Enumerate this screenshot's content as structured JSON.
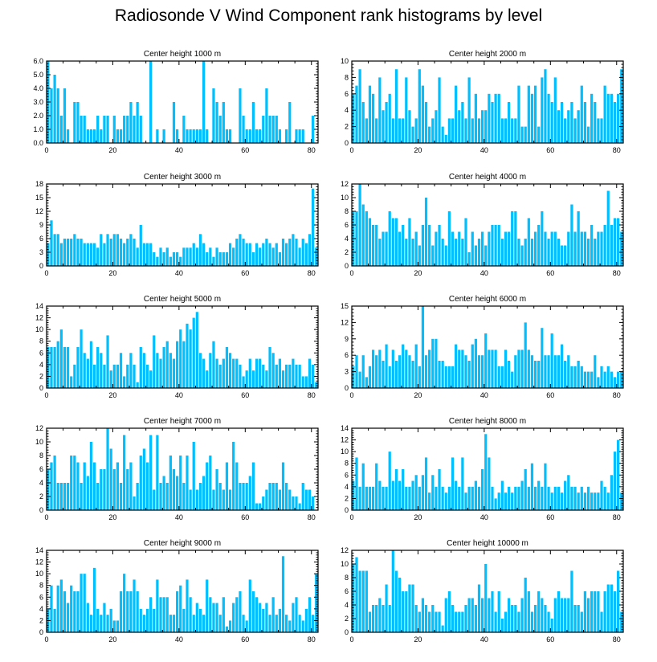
{
  "title": "Radiosonde V Wind Component rank histograms by level",
  "colors": {
    "bar": "#00bfff",
    "axis": "#000000",
    "background": "#ffffff"
  },
  "chart_data": [
    {
      "type": "bar",
      "title": "Center height 1000 m",
      "xlim": [
        0,
        82
      ],
      "ylim": [
        0,
        6
      ],
      "xticks": [
        0,
        20,
        40,
        60,
        80
      ],
      "yticks": [
        0,
        1,
        2,
        3,
        4,
        5,
        6
      ],
      "ytick_labels": [
        "0.0",
        "1.0",
        "2.0",
        "3.0",
        "4.0",
        "5.0",
        "6.0"
      ],
      "values": [
        6,
        4,
        5,
        4,
        2,
        4,
        1,
        0,
        3,
        3,
        2,
        2,
        1,
        1,
        1,
        2,
        1,
        2,
        2,
        0,
        2,
        1,
        1,
        2,
        2,
        3,
        2,
        3,
        2,
        0,
        0,
        6,
        0,
        1,
        0,
        1,
        0,
        0,
        3,
        1,
        0,
        2,
        1,
        1,
        1,
        1,
        1,
        6,
        1,
        0,
        4,
        3,
        2,
        3,
        1,
        1,
        0,
        0,
        4,
        2,
        1,
        1,
        3,
        1,
        1,
        2,
        4,
        2,
        2,
        2,
        1,
        0,
        1,
        3,
        0,
        1,
        1,
        1,
        0,
        0,
        2,
        0
      ]
    },
    {
      "type": "bar",
      "title": "Center height 2000 m",
      "xlim": [
        0,
        82
      ],
      "ylim": [
        0,
        10
      ],
      "xticks": [
        0,
        20,
        40,
        60,
        80
      ],
      "yticks": [
        0,
        2,
        4,
        6,
        8,
        10
      ],
      "ytick_labels": [
        "0",
        "2",
        "4",
        "6",
        "8",
        "10"
      ],
      "values": [
        6,
        7,
        9,
        5,
        3,
        7,
        6,
        3,
        8,
        4,
        5,
        6,
        3,
        9,
        3,
        3,
        8,
        4,
        2,
        3,
        9,
        7,
        5,
        2,
        3,
        4,
        8,
        2,
        1,
        3,
        3,
        7,
        4,
        5,
        3,
        8,
        3,
        6,
        3,
        4,
        4,
        6,
        5,
        6,
        6,
        3,
        3,
        5,
        3,
        3,
        7,
        2,
        2,
        7,
        6,
        7,
        2,
        8,
        9,
        6,
        5,
        8,
        4,
        5,
        3,
        4,
        5,
        3,
        4,
        7,
        5,
        2,
        6,
        5,
        3,
        3,
        7,
        6,
        6,
        5,
        6,
        9
      ]
    },
    {
      "type": "bar",
      "title": "Center height 3000 m",
      "xlim": [
        0,
        82
      ],
      "ylim": [
        0,
        18
      ],
      "xticks": [
        0,
        20,
        40,
        60,
        80
      ],
      "yticks": [
        0,
        3,
        6,
        9,
        12,
        15,
        18
      ],
      "ytick_labels": [
        "0",
        "3",
        "6",
        "9",
        "12",
        "15",
        "18"
      ],
      "values": [
        5,
        10,
        7,
        7,
        5,
        6,
        6,
        6,
        7,
        6,
        6,
        5,
        5,
        5,
        5,
        4,
        7,
        5,
        7,
        6,
        7,
        7,
        6,
        5,
        6,
        7,
        6,
        4,
        9,
        5,
        5,
        5,
        3,
        2,
        4,
        3,
        4,
        2,
        3,
        3,
        2,
        4,
        4,
        4,
        5,
        4,
        7,
        5,
        3,
        4,
        2,
        4,
        3,
        3,
        3,
        5,
        4,
        6,
        7,
        6,
        5,
        5,
        3,
        5,
        4,
        5,
        6,
        5,
        4,
        5,
        3,
        6,
        5,
        6,
        7,
        6,
        4,
        6,
        5,
        7,
        17,
        4
      ]
    },
    {
      "type": "bar",
      "title": "Center height 4000 m",
      "xlim": [
        0,
        82
      ],
      "ylim": [
        0,
        12
      ],
      "xticks": [
        0,
        20,
        40,
        60,
        80
      ],
      "yticks": [
        0,
        2,
        4,
        6,
        8,
        10,
        12
      ],
      "ytick_labels": [
        "0",
        "2",
        "4",
        "6",
        "8",
        "10",
        "12"
      ],
      "values": [
        8,
        8,
        12,
        9,
        8,
        7,
        6,
        6,
        4,
        5,
        5,
        8,
        7,
        7,
        5,
        6,
        4,
        7,
        4,
        5,
        3,
        6,
        10,
        6,
        3,
        5,
        6,
        4,
        3,
        8,
        5,
        4,
        5,
        4,
        7,
        2,
        5,
        3,
        4,
        5,
        3,
        5,
        6,
        6,
        6,
        4,
        5,
        5,
        8,
        8,
        4,
        3,
        4,
        7,
        4,
        5,
        6,
        8,
        5,
        4,
        5,
        5,
        4,
        3,
        3,
        5,
        9,
        5,
        8,
        5,
        5,
        4,
        6,
        4,
        5,
        5,
        6,
        11,
        6,
        7,
        7,
        5
      ]
    },
    {
      "type": "bar",
      "title": "Center height 5000 m",
      "xlim": [
        0,
        82
      ],
      "ylim": [
        0,
        14
      ],
      "xticks": [
        0,
        20,
        40,
        60,
        80
      ],
      "yticks": [
        0,
        2,
        4,
        6,
        8,
        10,
        12,
        14
      ],
      "ytick_labels": [
        "0",
        "2",
        "4",
        "6",
        "8",
        "10",
        "12",
        "14"
      ],
      "values": [
        7,
        7,
        7,
        8,
        10,
        7,
        7,
        2,
        4,
        7,
        10,
        6,
        5,
        8,
        4,
        7,
        6,
        4,
        9,
        3,
        4,
        4,
        6,
        2,
        4,
        6,
        4,
        1,
        7,
        6,
        4,
        3,
        9,
        6,
        5,
        7,
        8,
        6,
        5,
        8,
        10,
        8,
        11,
        10,
        12,
        13,
        6,
        5,
        3,
        6,
        8,
        5,
        4,
        5,
        7,
        6,
        5,
        5,
        4,
        2,
        3,
        5,
        3,
        5,
        5,
        4,
        3,
        7,
        6,
        4,
        5,
        3,
        4,
        4,
        5,
        4,
        4,
        2,
        2,
        5,
        4,
        1
      ]
    },
    {
      "type": "bar",
      "title": "Center height 6000 m",
      "xlim": [
        0,
        82
      ],
      "ylim": [
        0,
        15
      ],
      "xticks": [
        0,
        20,
        40,
        60,
        80
      ],
      "yticks": [
        0,
        3,
        6,
        9,
        12,
        15
      ],
      "ytick_labels": [
        "0",
        "3",
        "6",
        "9",
        "12",
        "15"
      ],
      "values": [
        4,
        6,
        3,
        6,
        2,
        4,
        7,
        6,
        7,
        5,
        8,
        4,
        7,
        5,
        6,
        8,
        7,
        6,
        5,
        8,
        4,
        15,
        6,
        7,
        9,
        9,
        5,
        5,
        4,
        4,
        4,
        8,
        7,
        7,
        6,
        5,
        8,
        9,
        6,
        6,
        10,
        7,
        7,
        7,
        4,
        4,
        7,
        5,
        3,
        6,
        7,
        7,
        12,
        7,
        6,
        5,
        5,
        11,
        6,
        6,
        10,
        6,
        6,
        8,
        5,
        6,
        4,
        4,
        5,
        4,
        3,
        3,
        3,
        6,
        2,
        4,
        3,
        4,
        3,
        2,
        3,
        3
      ]
    },
    {
      "type": "bar",
      "title": "Center height 7000 m",
      "xlim": [
        0,
        82
      ],
      "ylim": [
        0,
        12
      ],
      "xticks": [
        0,
        20,
        40,
        60,
        80
      ],
      "yticks": [
        0,
        2,
        4,
        6,
        8,
        10,
        12
      ],
      "ytick_labels": [
        "0",
        "2",
        "4",
        "6",
        "8",
        "10",
        "12"
      ],
      "values": [
        6,
        7,
        8,
        4,
        4,
        4,
        4,
        8,
        8,
        7,
        4,
        7,
        5,
        10,
        7,
        4,
        6,
        6,
        12,
        9,
        6,
        7,
        4,
        11,
        6,
        7,
        2,
        4,
        8,
        9,
        7,
        11,
        3,
        11,
        4,
        5,
        4,
        8,
        6,
        5,
        8,
        4,
        8,
        3,
        10,
        3,
        4,
        5,
        7,
        8,
        3,
        6,
        4,
        3,
        7,
        3,
        10,
        7,
        4,
        4,
        4,
        5,
        7,
        1,
        1,
        2,
        3,
        4,
        4,
        4,
        3,
        7,
        4,
        3,
        2,
        2,
        1,
        4,
        3,
        3,
        2
      ]
    },
    {
      "type": "bar",
      "title": "Center height 8000 m",
      "xlim": [
        0,
        82
      ],
      "ylim": [
        0,
        14
      ],
      "xticks": [
        0,
        20,
        40,
        60,
        80
      ],
      "yticks": [
        0,
        2,
        4,
        6,
        8,
        10,
        12,
        14
      ],
      "ytick_labels": [
        "0",
        "2",
        "4",
        "6",
        "8",
        "10",
        "12",
        "14"
      ],
      "values": [
        5,
        9,
        4,
        8,
        4,
        4,
        4,
        8,
        5,
        4,
        4,
        10,
        5,
        7,
        5,
        7,
        4,
        4,
        5,
        6,
        4,
        6,
        9,
        3,
        6,
        4,
        7,
        4,
        3,
        4,
        9,
        5,
        4,
        9,
        3,
        4,
        4,
        5,
        4,
        7,
        13,
        9,
        4,
        2,
        3,
        5,
        3,
        4,
        3,
        4,
        4,
        5,
        7,
        4,
        8,
        4,
        5,
        4,
        8,
        4,
        3,
        4,
        4,
        3,
        5,
        6,
        4,
        4,
        3,
        4,
        3,
        4,
        3,
        3,
        3,
        5,
        4,
        3,
        6,
        10,
        12,
        3
      ]
    },
    {
      "type": "bar",
      "title": "Center height 9000 m",
      "xlim": [
        0,
        82
      ],
      "ylim": [
        0,
        14
      ],
      "xticks": [
        0,
        20,
        40,
        60,
        80
      ],
      "yticks": [
        0,
        2,
        4,
        6,
        8,
        10,
        12,
        14
      ],
      "ytick_labels": [
        "0",
        "2",
        "4",
        "6",
        "8",
        "10",
        "12",
        "14"
      ],
      "values": [
        4,
        8,
        4,
        8,
        9,
        7,
        5,
        8,
        7,
        7,
        10,
        10,
        5,
        3,
        11,
        4,
        3,
        5,
        3,
        4,
        2,
        2,
        7,
        10,
        7,
        7,
        9,
        7,
        4,
        3,
        4,
        6,
        4,
        9,
        6,
        6,
        6,
        3,
        3,
        7,
        8,
        4,
        9,
        6,
        3,
        5,
        4,
        3,
        9,
        6,
        5,
        5,
        3,
        6,
        1,
        2,
        5,
        6,
        7,
        3,
        2,
        9,
        7,
        6,
        5,
        4,
        5,
        3,
        6,
        3,
        4,
        13,
        3,
        2,
        5,
        6,
        3,
        2,
        4,
        6,
        3,
        10
      ]
    },
    {
      "type": "bar",
      "title": "Center height 10000 m",
      "xlim": [
        0,
        82
      ],
      "ylim": [
        0,
        12
      ],
      "xticks": [
        0,
        20,
        40,
        60,
        80
      ],
      "yticks": [
        0,
        2,
        4,
        6,
        8,
        10,
        12
      ],
      "ytick_labels": [
        "0",
        "2",
        "4",
        "6",
        "8",
        "10",
        "12"
      ],
      "values": [
        10,
        11,
        9,
        9,
        9,
        3,
        4,
        4,
        5,
        4,
        7,
        4,
        12,
        9,
        8,
        6,
        6,
        7,
        7,
        4,
        3,
        5,
        4,
        3,
        4,
        3,
        3,
        1,
        5,
        6,
        4,
        3,
        3,
        3,
        4,
        5,
        5,
        4,
        7,
        5,
        10,
        5,
        6,
        3,
        6,
        2,
        3,
        5,
        4,
        4,
        3,
        5,
        8,
        6,
        3,
        4,
        6,
        5,
        4,
        3,
        2,
        5,
        6,
        5,
        5,
        5,
        9,
        4,
        4,
        3,
        6,
        5,
        6,
        6,
        6,
        3,
        6,
        7,
        7,
        6,
        9,
        3
      ]
    }
  ]
}
